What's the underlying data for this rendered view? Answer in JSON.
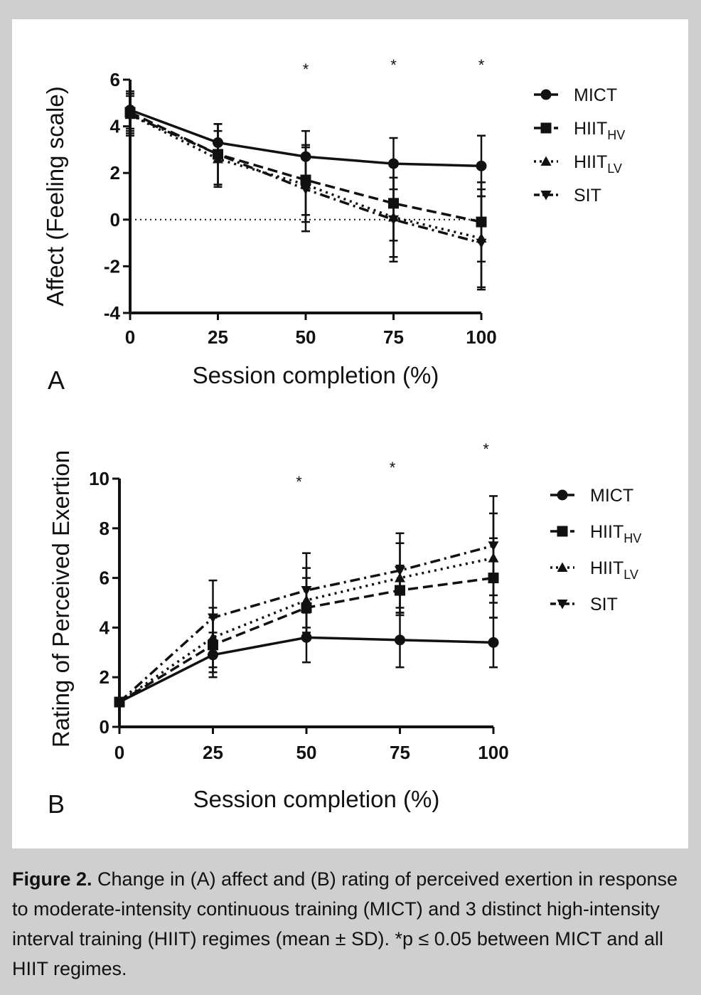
{
  "caption": {
    "lead": "Figure 2.",
    "text": "Change in (A) affect and (B) rating of perceived exertion in response to moderate-intensity continuous training (MICT) and 3 distinct high-intensity interval training (HIIT) regimes (mean ± SD). *p ≤ 0.05 between MICT and all HIIT regimes."
  },
  "chart_data": [
    {
      "type": "line",
      "panel_label": "A",
      "xlabel": "Session completion (%)",
      "ylabel": "Affect (Feeling scale)",
      "x": [
        0,
        25,
        50,
        75,
        100
      ],
      "xlim": [
        0,
        100
      ],
      "ylim": [
        -4,
        6
      ],
      "yticks": [
        -4,
        -2,
        0,
        2,
        4,
        6
      ],
      "reference_line_y": 0,
      "grid": false,
      "legend_position": "right",
      "significance_x": [
        50,
        75,
        100
      ],
      "significance_marker": "*",
      "series": [
        {
          "name": "MICT",
          "subscript": "",
          "marker": "circle",
          "dash": "solid",
          "values": [
            4.7,
            3.3,
            2.7,
            2.4,
            2.3
          ],
          "error": [
            0.8,
            0.8,
            1.1,
            1.1,
            1.3
          ]
        },
        {
          "name": "HIIT",
          "subscript": "HV",
          "marker": "square",
          "dash": "dashed",
          "values": [
            4.6,
            2.8,
            1.7,
            0.7,
            -0.1
          ],
          "error": [
            0.8,
            1.3,
            1.5,
            1.6,
            1.7
          ]
        },
        {
          "name": "HIIT",
          "subscript": "LV",
          "marker": "triangle-up",
          "dash": "dotted",
          "values": [
            4.5,
            2.6,
            1.5,
            0.1,
            -0.8
          ],
          "error": [
            0.8,
            1.2,
            1.6,
            1.7,
            2.1
          ]
        },
        {
          "name": "SIT",
          "subscript": "",
          "marker": "triangle-down",
          "dash": "dashdot",
          "values": [
            4.5,
            2.8,
            1.3,
            0.0,
            -1.0
          ],
          "error": [
            0.9,
            1.3,
            1.8,
            1.8,
            2.0
          ]
        }
      ]
    },
    {
      "type": "line",
      "panel_label": "B",
      "xlabel": "Session completion (%)",
      "ylabel": "Rating of Perceived Exertion",
      "x": [
        0,
        25,
        50,
        75,
        100
      ],
      "xlim": [
        0,
        100
      ],
      "ylim": [
        0,
        10
      ],
      "yticks": [
        0,
        2,
        4,
        6,
        8,
        10
      ],
      "grid": false,
      "legend_position": "right",
      "significance_x": [
        48,
        73,
        98
      ],
      "significance_marker": "*",
      "series": [
        {
          "name": "MICT",
          "subscript": "",
          "marker": "circle",
          "dash": "solid",
          "values": [
            1.0,
            2.9,
            3.6,
            3.5,
            3.4
          ],
          "error": [
            0.0,
            0.9,
            1.0,
            1.1,
            1.0
          ]
        },
        {
          "name": "HIIT",
          "subscript": "HV",
          "marker": "square",
          "dash": "dashed",
          "values": [
            1.0,
            3.3,
            4.8,
            5.5,
            6.0
          ],
          "error": [
            0.0,
            1.1,
            1.2,
            1.0,
            1.6
          ]
        },
        {
          "name": "HIIT",
          "subscript": "LV",
          "marker": "triangle-up",
          "dash": "dotted",
          "values": [
            1.0,
            3.6,
            5.1,
            6.0,
            6.8
          ],
          "error": [
            0.0,
            1.2,
            1.3,
            1.4,
            1.8
          ]
        },
        {
          "name": "SIT",
          "subscript": "",
          "marker": "triangle-down",
          "dash": "dashdot",
          "values": [
            1.0,
            4.4,
            5.5,
            6.3,
            7.3
          ],
          "error": [
            0.0,
            1.5,
            1.5,
            1.5,
            2.0
          ]
        }
      ]
    }
  ]
}
